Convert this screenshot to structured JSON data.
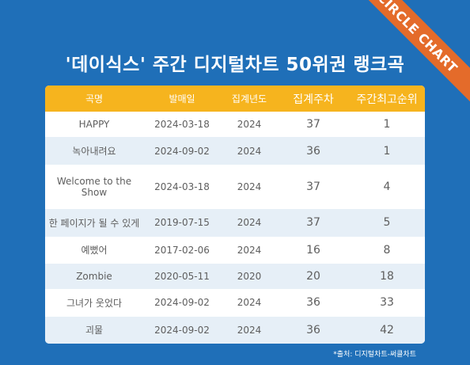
{
  "title": "'데이식스' 주간 디지털차트 50위권 랭크곡",
  "ribbon": "CIRCLE CHART",
  "table": {
    "headers": [
      "곡명",
      "발매일",
      "집계년도",
      "집계주차",
      "주간최고순위"
    ],
    "rows": [
      {
        "song": "HAPPY",
        "release": "2024-03-18",
        "year": "2024",
        "weeks": "37",
        "peak": "1"
      },
      {
        "song": "녹아내려요",
        "release": "2024-09-02",
        "year": "2024",
        "weeks": "36",
        "peak": "1"
      },
      {
        "song": "Welcome to the Show",
        "release": "2024-03-18",
        "year": "2024",
        "weeks": "37",
        "peak": "4"
      },
      {
        "song": "한 페이지가 될 수 있게",
        "release": "2019-07-15",
        "year": "2024",
        "weeks": "37",
        "peak": "5"
      },
      {
        "song": "예뻤어",
        "release": "2017-02-06",
        "year": "2024",
        "weeks": "16",
        "peak": "8"
      },
      {
        "song": "Zombie",
        "release": "2020-05-11",
        "year": "2020",
        "weeks": "20",
        "peak": "18"
      },
      {
        "song": "그녀가 웃었다",
        "release": "2024-09-02",
        "year": "2024",
        "weeks": "36",
        "peak": "33"
      },
      {
        "song": "괴물",
        "release": "2024-09-02",
        "year": "2024",
        "weeks": "36",
        "peak": "42"
      }
    ]
  },
  "source": "*출처: 디지털차트-써클차트",
  "colors": {
    "background": "#1f6fb8",
    "header": "#f6b41e",
    "ribbon": "#e46b2a",
    "row_alt": "#e6eff7"
  }
}
